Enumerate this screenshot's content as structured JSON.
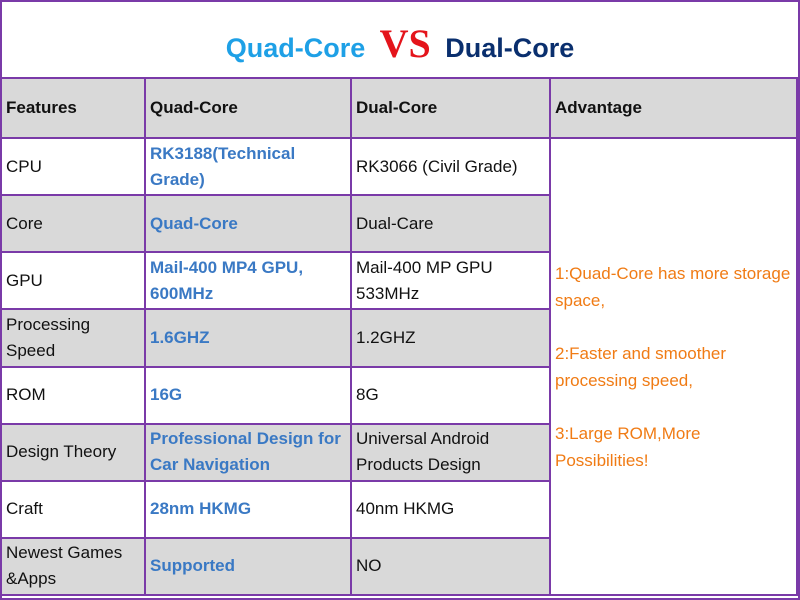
{
  "title": {
    "left": "Quad-Core",
    "vs": "VS",
    "right": "Dual-Core"
  },
  "headers": [
    "Features",
    "Quad-Core",
    "Dual-Core",
    "Advantage"
  ],
  "rows": [
    {
      "feature": "CPU",
      "quad": "RK3188(Technical Grade)",
      "dual": "RK3066 (Civil Grade)"
    },
    {
      "feature": "Core",
      "quad": "Quad-Core",
      "dual": "Dual-Care"
    },
    {
      "feature": "GPU",
      "quad": "Mail-400 MP4 GPU, 600MHz",
      "dual": "Mail-400 MP GPU 533MHz"
    },
    {
      "feature": "Processing Speed",
      "quad": "1.6GHZ",
      "dual": "1.2GHZ"
    },
    {
      "feature": "ROM",
      "quad": "16G",
      "dual": "8G"
    },
    {
      "feature": "Design Theory",
      "quad": "Professional Design for Car Navigation",
      "dual": "Universal Android Products Design"
    },
    {
      "feature": "Craft",
      "quad": "28nm HKMG",
      "dual": "40nm HKMG"
    },
    {
      "feature": "Newest Games &Apps",
      "quad": "Supported",
      "dual": "NO"
    }
  ],
  "advantages": [
    "1:Quad-Core has more storage space,",
    "2:Faster and smoother processing speed,",
    "3:Large ROM,More Possibilities!"
  ],
  "colors": {
    "border": "#7a3aa8",
    "quad_title": "#1ea0e6",
    "vs": "#e4141b",
    "dual_title": "#0a2f6e",
    "quad_text": "#3a79c4",
    "advantage_text": "#f07b14",
    "header_bg": "#d9d9d9"
  }
}
